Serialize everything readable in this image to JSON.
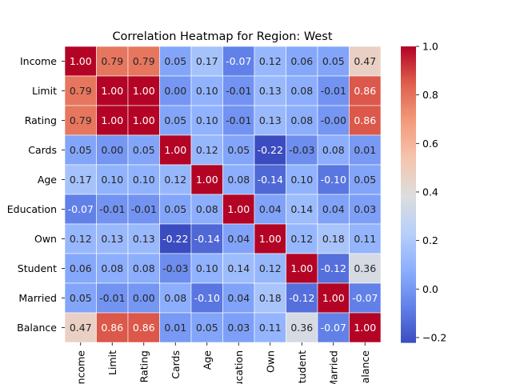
{
  "chart_data": {
    "type": "heatmap",
    "title": "Correlation Heatmap for Region: West",
    "xlabel": "",
    "ylabel": "",
    "row_labels": [
      "Income",
      "Limit",
      "Rating",
      "Cards",
      "Age",
      "Education",
      "Own",
      "Student",
      "Married",
      "Balance"
    ],
    "col_labels": [
      "Income",
      "Limit",
      "Rating",
      "Cards",
      "Age",
      "Education",
      "Own",
      "Student",
      "Married",
      "Balance"
    ],
    "values": [
      [
        1.0,
        0.79,
        0.79,
        0.05,
        0.17,
        -0.07,
        0.12,
        0.06,
        0.05,
        0.47
      ],
      [
        0.79,
        1.0,
        1.0,
        0.0,
        0.1,
        -0.01,
        0.13,
        0.08,
        -0.01,
        0.86
      ],
      [
        0.79,
        1.0,
        1.0,
        0.05,
        0.1,
        -0.01,
        0.13,
        0.08,
        -0.0,
        0.86
      ],
      [
        0.05,
        0.0,
        0.05,
        1.0,
        0.12,
        0.05,
        -0.22,
        -0.03,
        0.08,
        0.01
      ],
      [
        0.17,
        0.1,
        0.1,
        0.12,
        1.0,
        0.08,
        -0.14,
        0.1,
        -0.1,
        0.05
      ],
      [
        -0.07,
        -0.01,
        -0.01,
        0.05,
        0.08,
        1.0,
        0.04,
        0.14,
        0.04,
        0.03
      ],
      [
        0.12,
        0.13,
        0.13,
        -0.22,
        -0.14,
        0.04,
        1.0,
        0.12,
        0.18,
        0.11
      ],
      [
        0.06,
        0.08,
        0.08,
        -0.03,
        0.1,
        0.14,
        0.12,
        1.0,
        -0.12,
        0.36
      ],
      [
        0.05,
        -0.01,
        -0.0,
        0.08,
        -0.1,
        0.04,
        0.18,
        -0.12,
        1.0,
        -0.07
      ],
      [
        0.47,
        0.86,
        0.86,
        0.01,
        0.05,
        0.03,
        0.11,
        0.36,
        -0.07,
        1.0
      ]
    ],
    "annotation_format": "0.00",
    "colormap": "coolwarm",
    "color_range": [
      -0.22,
      1.0
    ],
    "colorbar_ticks": [
      -0.2,
      0.0,
      0.2,
      0.4,
      0.6,
      0.8,
      1.0
    ],
    "colorbar_tick_labels": [
      "−0.2",
      "0.0",
      "0.2",
      "0.4",
      "0.6",
      "0.8",
      "1.0"
    ],
    "cell_border_color": "#ffffff",
    "grid": false,
    "legend": "colorbar-right"
  }
}
